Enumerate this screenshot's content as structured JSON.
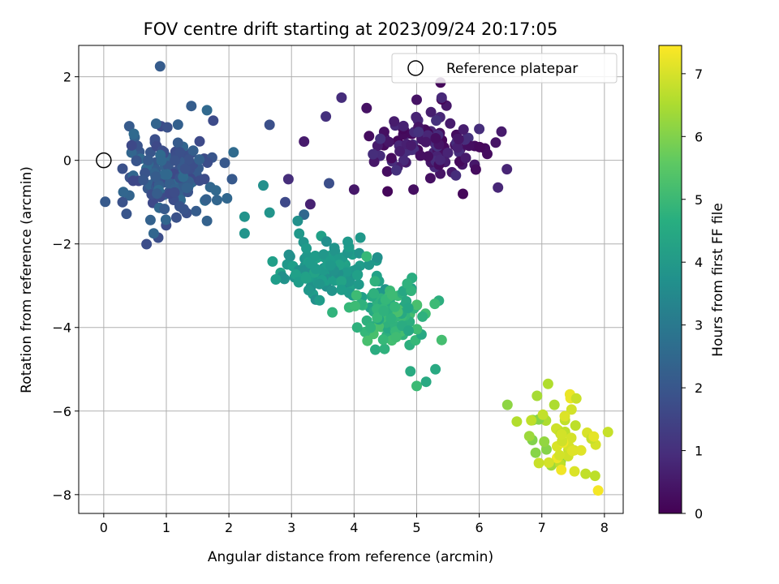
{
  "chart_data": {
    "type": "scatter",
    "title": "FOV centre drift starting at 2023/09/24 20:17:05",
    "xlabel": "Angular distance from reference (arcmin)",
    "ylabel": "Rotation from reference (arcmin)",
    "xlim": [
      -0.4,
      8.3
    ],
    "ylim": [
      -8.45,
      2.75
    ],
    "x_ticks": [
      0,
      1,
      2,
      3,
      4,
      5,
      6,
      7,
      8
    ],
    "x_tick_labels": [
      "0",
      "1",
      "2",
      "3",
      "4",
      "5",
      "6",
      "7",
      "8"
    ],
    "y_ticks": [
      2,
      0,
      -2,
      -4,
      -6,
      -8
    ],
    "y_tick_labels": [
      "2",
      "0",
      "−2",
      "−4",
      "−6",
      "−8"
    ],
    "grid": true,
    "colormap": "viridis",
    "colorbar": {
      "label": "Hours from first FF file",
      "range": [
        0,
        7.45
      ],
      "ticks": [
        0,
        1,
        2,
        3,
        4,
        5,
        6,
        7
      ],
      "tick_labels": [
        "0",
        "1",
        "2",
        "3",
        "4",
        "5",
        "6",
        "7"
      ]
    },
    "legend": {
      "position": "top-right",
      "entries": [
        {
          "label": "Reference platepar",
          "marker": "open-circle"
        }
      ]
    },
    "reference_point": {
      "x": 0,
      "y": 0
    },
    "clusters": [
      {
        "t_min": 0.1,
        "t_max": 1.1,
        "x_center": 5.1,
        "y_center": 0.3,
        "x_spread": 0.55,
        "y_spread": 0.42,
        "n": 115,
        "extra": [
          [
            3.8,
            1.5
          ],
          [
            4.2,
            1.25
          ],
          [
            5.0,
            1.45
          ],
          [
            5.4,
            1.5
          ],
          [
            6.0,
            0.75
          ],
          [
            6.3,
            -0.65
          ],
          [
            3.2,
            0.45
          ],
          [
            2.95,
            -0.45
          ],
          [
            3.3,
            -1.05
          ],
          [
            4.0,
            -0.7
          ],
          [
            4.95,
            -0.7
          ],
          [
            3.55,
            1.05
          ]
        ]
      },
      {
        "t_min": 1.6,
        "t_max": 2.6,
        "x_center": 1.05,
        "y_center": -0.35,
        "x_spread": 0.33,
        "y_spread": 0.5,
        "n": 155,
        "extra": [
          [
            0.9,
            2.25
          ],
          [
            0.3,
            -0.2
          ],
          [
            0.3,
            -1.0
          ],
          [
            1.4,
            1.3
          ],
          [
            1.65,
            1.2
          ],
          [
            1.75,
            0.95
          ],
          [
            2.05,
            -0.45
          ],
          [
            1.65,
            -1.45
          ],
          [
            2.65,
            0.85
          ],
          [
            2.9,
            -1.0
          ],
          [
            3.2,
            -1.3
          ],
          [
            3.6,
            -0.55
          ]
        ]
      },
      {
        "t_min": 3.7,
        "t_max": 4.3,
        "x_center": 3.55,
        "y_center": -2.65,
        "x_spread": 0.38,
        "y_spread": 0.35,
        "n": 115,
        "extra": [
          [
            2.25,
            -1.35
          ],
          [
            2.25,
            -1.75
          ],
          [
            2.55,
            -0.6
          ],
          [
            2.65,
            -1.25
          ],
          [
            2.75,
            -2.85
          ],
          [
            3.1,
            -1.45
          ],
          [
            4.1,
            -1.85
          ],
          [
            3.9,
            -1.95
          ],
          [
            3.45,
            -3.35
          ],
          [
            3.8,
            -3.1
          ]
        ]
      },
      {
        "t_min": 4.4,
        "t_max": 5.3,
        "x_center": 4.6,
        "y_center": -3.75,
        "x_spread": 0.28,
        "y_spread": 0.35,
        "n": 95,
        "extra": [
          [
            4.05,
            -4.0
          ],
          [
            4.85,
            -2.95
          ],
          [
            5.4,
            -4.3
          ],
          [
            5.0,
            -5.4
          ],
          [
            5.3,
            -5.0
          ],
          [
            4.9,
            -5.05
          ],
          [
            5.15,
            -5.3
          ],
          [
            4.2,
            -2.3
          ]
        ]
      },
      {
        "t_min": 6.0,
        "t_max": 6.6,
        "x_center": 6.85,
        "y_center": -6.5,
        "x_spread": 0.2,
        "y_spread": 0.3,
        "n": 8,
        "extra": [
          [
            6.45,
            -5.85
          ],
          [
            6.6,
            -6.25
          ],
          [
            6.8,
            -6.6
          ],
          [
            6.95,
            -6.2
          ],
          [
            7.1,
            -5.35
          ],
          [
            7.2,
            -5.85
          ],
          [
            7.15,
            -7.3
          ],
          [
            7.3,
            -7.2
          ]
        ]
      },
      {
        "t_min": 6.7,
        "t_max": 7.35,
        "x_center": 7.45,
        "y_center": -6.6,
        "x_spread": 0.22,
        "y_spread": 0.45,
        "n": 34,
        "extra": [
          [
            7.45,
            -5.6
          ],
          [
            7.55,
            -5.7
          ],
          [
            7.9,
            -7.9
          ],
          [
            7.85,
            -7.55
          ],
          [
            7.7,
            -7.5
          ]
        ]
      }
    ]
  }
}
